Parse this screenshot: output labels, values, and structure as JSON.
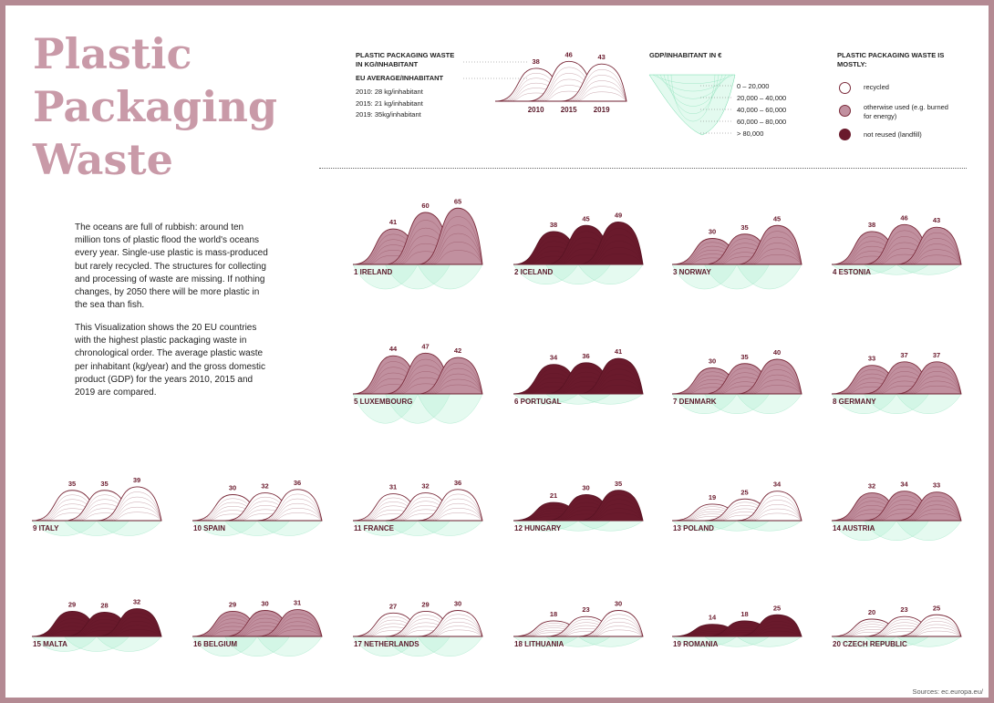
{
  "title": [
    "Plastic",
    "Packaging",
    "Waste"
  ],
  "intro": {
    "p1": "The oceans are full of rubbish: around ten million tons of plastic flood the world's oceans every year. Single-use plastic is mass-produced but rarely recycled. The structures for collecting and processing of waste are missing. If nothing changes, by 2050 there will be more plastic in the sea than fish.",
    "p2": "This Visualization shows the 20 EU countries with the highest plastic packaging waste in chronological order. The average plastic waste per inhabitant (kg/year) and the gross domestic product (GDP) for the years 2010, 2015 and 2019 are compared."
  },
  "key": {
    "waste_header": "PLASTIC PACKAGING WASTE IN KG/INHABITANT",
    "eu_header": "EU AVERAGE/INHABITANT",
    "eu_lines": [
      "2010: 28 kg/inhabitant",
      "2015: 21 kg/inhabitant",
      "2019: 35kg/inhabitant"
    ],
    "example_values": [
      38,
      46,
      43
    ],
    "years": [
      "2010",
      "2015",
      "2019"
    ],
    "gdp_header": "GDP/INHABITANT IN €",
    "gdp_classes": [
      "0 – 20,000",
      "20,000 – 40,000",
      "40,000 – 60,000",
      "60,000 – 80,000",
      "> 80,000"
    ],
    "mostly_header": "PLASTIC PACKAGING WASTE IS MOSTLY:",
    "mostly_items": [
      "recycled",
      "otherwise used (e.g. burned for energy)",
      "not reused (landfill)"
    ]
  },
  "colors": {
    "recycled": "#ffffff",
    "other_use": "#c1909f",
    "landfill": "#6a1a2c",
    "gdp": "#aef0d0",
    "frame": "#b48a93",
    "title": "#c99aa8"
  },
  "chart_data": {
    "type": "area",
    "years": [
      "2010",
      "2015",
      "2019"
    ],
    "unit": "kg/inhabitant",
    "countries": [
      {
        "rank": 1,
        "name": "IRELAND",
        "values": [
          41,
          60,
          65
        ],
        "mostly": "other_use",
        "gdp_class": 4
      },
      {
        "rank": 2,
        "name": "ICELAND",
        "values": [
          38,
          45,
          49
        ],
        "mostly": "landfill",
        "gdp_class": 3
      },
      {
        "rank": 3,
        "name": "NORWAY",
        "values": [
          30,
          35,
          45
        ],
        "mostly": "other_use",
        "gdp_class": 4
      },
      {
        "rank": 4,
        "name": "ESTONIA",
        "values": [
          38,
          46,
          43
        ],
        "mostly": "other_use",
        "gdp_class": 1
      },
      {
        "rank": 5,
        "name": "LUXEMBOURG",
        "values": [
          44,
          47,
          42
        ],
        "mostly": "other_use",
        "gdp_class": 5
      },
      {
        "rank": 6,
        "name": "PORTUGAL",
        "values": [
          34,
          36,
          41
        ],
        "mostly": "landfill",
        "gdp_class": 1
      },
      {
        "rank": 7,
        "name": "DENMARK",
        "values": [
          30,
          35,
          40
        ],
        "mostly": "other_use",
        "gdp_class": 3
      },
      {
        "rank": 8,
        "name": "GERMANY",
        "values": [
          33,
          37,
          37
        ],
        "mostly": "other_use",
        "gdp_class": 3
      },
      {
        "rank": 9,
        "name": "ITALY",
        "values": [
          35,
          35,
          39
        ],
        "mostly": "recycled",
        "gdp_class": 2
      },
      {
        "rank": 10,
        "name": "SPAIN",
        "values": [
          30,
          32,
          36
        ],
        "mostly": "recycled",
        "gdp_class": 2
      },
      {
        "rank": 11,
        "name": "FRANCE",
        "values": [
          31,
          32,
          36
        ],
        "mostly": "recycled",
        "gdp_class": 2
      },
      {
        "rank": 12,
        "name": "HUNGARY",
        "values": [
          21,
          30,
          35
        ],
        "mostly": "landfill",
        "gdp_class": 1
      },
      {
        "rank": 13,
        "name": "POLAND",
        "values": [
          19,
          25,
          34
        ],
        "mostly": "recycled",
        "gdp_class": 1
      },
      {
        "rank": 14,
        "name": "AUSTRIA",
        "values": [
          32,
          34,
          33
        ],
        "mostly": "other_use",
        "gdp_class": 3
      },
      {
        "rank": 15,
        "name": "MALTA",
        "values": [
          29,
          28,
          32
        ],
        "mostly": "landfill",
        "gdp_class": 2
      },
      {
        "rank": 16,
        "name": "BELGIUM",
        "values": [
          29,
          30,
          31
        ],
        "mostly": "other_use",
        "gdp_class": 3
      },
      {
        "rank": 17,
        "name": "NETHERLANDS",
        "values": [
          27,
          29,
          30
        ],
        "mostly": "recycled",
        "gdp_class": 3
      },
      {
        "rank": 18,
        "name": "LITHUANIA",
        "values": [
          18,
          23,
          30
        ],
        "mostly": "recycled",
        "gdp_class": 1
      },
      {
        "rank": 19,
        "name": "ROMANIA",
        "values": [
          14,
          18,
          25
        ],
        "mostly": "landfill",
        "gdp_class": 1
      },
      {
        "rank": 20,
        "name": "CZECH REPUBLIC",
        "values": [
          20,
          23,
          25
        ],
        "mostly": "recycled",
        "gdp_class": 1
      }
    ]
  },
  "source": "Sources: ec.europa.eu/"
}
